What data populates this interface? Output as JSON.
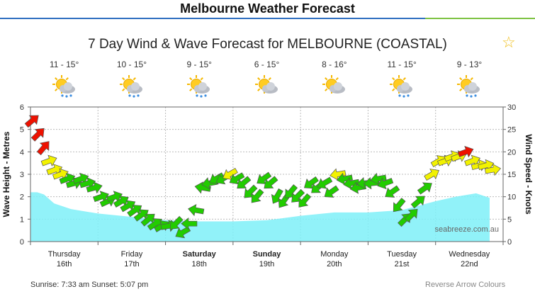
{
  "header": {
    "title": "Melbourne Weather Forecast"
  },
  "colors": {
    "header_rule_left": "#2f6fc0",
    "header_rule_right": "#7dc242",
    "wave_fill": "#7ef0f8",
    "wind_low": "#22cc00",
    "wind_mid": "#f2f200",
    "wind_high": "#ee1100"
  },
  "days": [
    {
      "temp": "11 - 15°",
      "icon": "partly-cloudy-rain-icon"
    },
    {
      "temp": "10 - 15°",
      "icon": "partly-cloudy-rain-icon"
    },
    {
      "temp": "9 - 15°",
      "icon": "partly-cloudy-rain-icon"
    },
    {
      "temp": "6 - 15°",
      "icon": "partly-cloudy-icon"
    },
    {
      "temp": "8 - 16°",
      "icon": "partly-cloudy-icon"
    },
    {
      "temp": "11 - 15°",
      "icon": "partly-cloudy-rain-icon"
    },
    {
      "temp": "9 - 13°",
      "icon": "partly-cloudy-rain-icon"
    }
  ],
  "chart_data": {
    "type": "area",
    "title": "7 Day Wind & Wave Forecast for MELBOURNE (COASTAL)",
    "ylabel": "Wave Height - Metres",
    "y2label": "Wind Speed - Knots",
    "ylim": [
      0,
      6
    ],
    "y2lim": [
      0,
      30
    ],
    "yticks": [
      "0",
      "1",
      "2",
      "3",
      "4",
      "5",
      "6"
    ],
    "y2ticks": [
      "0",
      "5",
      "10",
      "15",
      "20",
      "25",
      "30"
    ],
    "watermark": "seabreeze.com.au",
    "days": [
      {
        "name": "Thursday",
        "date": "16th",
        "bold": false
      },
      {
        "name": "Friday",
        "date": "17th",
        "bold": false
      },
      {
        "name": "Saturday",
        "date": "18th",
        "bold": true
      },
      {
        "name": "Sunday",
        "date": "19th",
        "bold": true
      },
      {
        "name": "Monday",
        "date": "20th",
        "bold": false
      },
      {
        "name": "Tuesday",
        "date": "21st",
        "bold": false
      },
      {
        "name": "Wednesday",
        "date": "22nd",
        "bold": false
      }
    ],
    "wave": {
      "x": [
        0,
        0.1,
        0.2,
        0.35,
        0.6,
        1.0,
        1.5,
        2.0,
        2.5,
        3.0,
        3.5,
        4.0,
        4.5,
        5.0,
        5.5,
        6.0,
        6.3,
        6.6,
        6.8
      ],
      "y": [
        2.2,
        2.2,
        2.1,
        1.7,
        1.45,
        1.25,
        1.1,
        0.95,
        0.9,
        0.9,
        0.95,
        1.15,
        1.3,
        1.3,
        1.4,
        1.8,
        2.0,
        2.15,
        1.95
      ]
    },
    "wind": [
      {
        "t": 0.03,
        "speed": 27,
        "dir": 230
      },
      {
        "t": 0.12,
        "speed": 24,
        "dir": 225
      },
      {
        "t": 0.2,
        "speed": 21,
        "dir": 220
      },
      {
        "t": 0.28,
        "speed": 18,
        "dir": 250
      },
      {
        "t": 0.36,
        "speed": 16,
        "dir": 250
      },
      {
        "t": 0.45,
        "speed": 15,
        "dir": 250
      },
      {
        "t": 0.55,
        "speed": 14,
        "dir": 250
      },
      {
        "t": 0.65,
        "speed": 13,
        "dir": 255
      },
      {
        "t": 0.75,
        "speed": 14,
        "dir": 250
      },
      {
        "t": 0.85,
        "speed": 13,
        "dir": 255
      },
      {
        "t": 0.95,
        "speed": 12,
        "dir": 255
      },
      {
        "t": 1.05,
        "speed": 10,
        "dir": 250
      },
      {
        "t": 1.15,
        "speed": 9,
        "dir": 245
      },
      {
        "t": 1.25,
        "speed": 10,
        "dir": 250
      },
      {
        "t": 1.35,
        "speed": 9,
        "dir": 240
      },
      {
        "t": 1.45,
        "speed": 8,
        "dir": 240
      },
      {
        "t": 1.55,
        "speed": 7,
        "dir": 235
      },
      {
        "t": 1.65,
        "speed": 6,
        "dir": 235
      },
      {
        "t": 1.75,
        "speed": 5,
        "dir": 230
      },
      {
        "t": 1.85,
        "speed": 4,
        "dir": 235
      },
      {
        "t": 1.95,
        "speed": 3.5,
        "dir": 240
      },
      {
        "t": 2.05,
        "speed": 3.5,
        "dir": 260
      },
      {
        "t": 2.15,
        "speed": 4,
        "dir": 45
      },
      {
        "t": 2.25,
        "speed": 2,
        "dir": 60
      },
      {
        "t": 2.35,
        "speed": 4,
        "dir": 90
      },
      {
        "t": 2.45,
        "speed": 7,
        "dir": 100
      },
      {
        "t": 2.55,
        "speed": 12,
        "dir": 100
      },
      {
        "t": 2.65,
        "speed": 13,
        "dir": 80
      },
      {
        "t": 2.75,
        "speed": 14,
        "dir": 60
      },
      {
        "t": 2.85,
        "speed": 14,
        "dir": 60
      },
      {
        "t": 2.95,
        "speed": 15,
        "dir": 60
      },
      {
        "t": 3.05,
        "speed": 14,
        "dir": 60
      },
      {
        "t": 3.15,
        "speed": 13,
        "dir": 50
      },
      {
        "t": 3.25,
        "speed": 11,
        "dir": 45
      },
      {
        "t": 3.35,
        "speed": 10,
        "dir": 40
      },
      {
        "t": 3.45,
        "speed": 14,
        "dir": 55
      },
      {
        "t": 3.55,
        "speed": 13,
        "dir": 50
      },
      {
        "t": 3.65,
        "speed": 10,
        "dir": 30
      },
      {
        "t": 3.75,
        "speed": 9,
        "dir": 35
      },
      {
        "t": 3.85,
        "speed": 11,
        "dir": 40
      },
      {
        "t": 3.95,
        "speed": 10,
        "dir": 45
      },
      {
        "t": 4.05,
        "speed": 9,
        "dir": 40
      },
      {
        "t": 4.15,
        "speed": 13,
        "dir": 55
      },
      {
        "t": 4.25,
        "speed": 12,
        "dir": 50
      },
      {
        "t": 4.35,
        "speed": 13,
        "dir": 60
      },
      {
        "t": 4.45,
        "speed": 11,
        "dir": 55
      },
      {
        "t": 4.55,
        "speed": 15,
        "dir": 80
      },
      {
        "t": 4.65,
        "speed": 14,
        "dir": 80
      },
      {
        "t": 4.75,
        "speed": 13,
        "dir": 80
      },
      {
        "t": 4.85,
        "speed": 12,
        "dir": 80
      },
      {
        "t": 4.95,
        "speed": 13,
        "dir": 85
      },
      {
        "t": 5.05,
        "speed": 13,
        "dir": 85
      },
      {
        "t": 5.15,
        "speed": 14,
        "dir": 80
      },
      {
        "t": 5.25,
        "speed": 13,
        "dir": 70
      },
      {
        "t": 5.35,
        "speed": 11,
        "dir": 55
      },
      {
        "t": 5.45,
        "speed": 8,
        "dir": 40
      },
      {
        "t": 5.55,
        "speed": 5,
        "dir": 225
      },
      {
        "t": 5.65,
        "speed": 6,
        "dir": 225
      },
      {
        "t": 5.75,
        "speed": 9,
        "dir": 230
      },
      {
        "t": 5.85,
        "speed": 12,
        "dir": 235
      },
      {
        "t": 5.95,
        "speed": 15,
        "dir": 240
      },
      {
        "t": 6.05,
        "speed": 18,
        "dir": 240
      },
      {
        "t": 6.15,
        "speed": 18,
        "dir": 250
      },
      {
        "t": 6.25,
        "speed": 19,
        "dir": 250
      },
      {
        "t": 6.35,
        "speed": 19,
        "dir": 250
      },
      {
        "t": 6.45,
        "speed": 20,
        "dir": 250
      },
      {
        "t": 6.55,
        "speed": 18,
        "dir": 250
      },
      {
        "t": 6.65,
        "speed": 17,
        "dir": 255
      },
      {
        "t": 6.75,
        "speed": 17,
        "dir": 255
      },
      {
        "t": 6.85,
        "speed": 16,
        "dir": 260
      }
    ]
  },
  "footer": {
    "sun_times": "Sunrise: 7:33 am  Sunset: 5:07 pm",
    "reverse_label": "Reverse Arrow Colours"
  }
}
